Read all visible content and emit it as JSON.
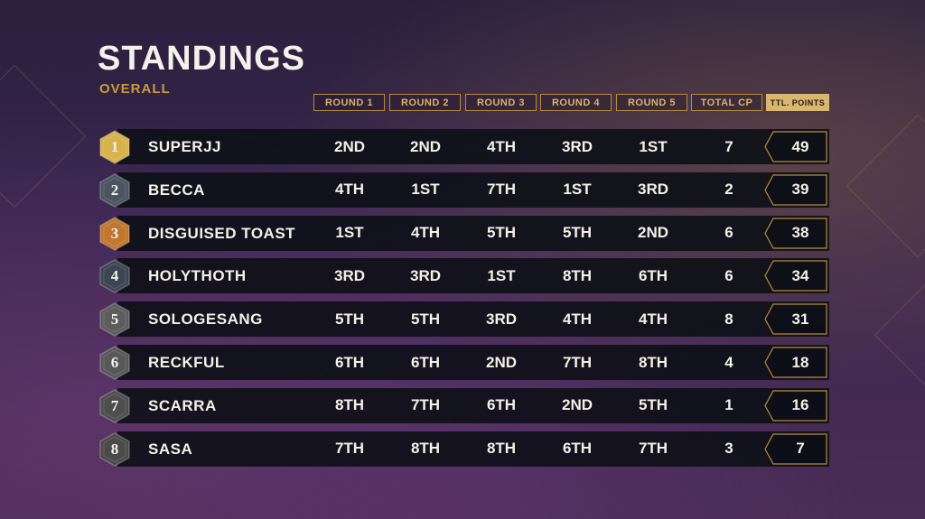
{
  "header": {
    "title": "STANDINGS",
    "subtitle": "OVERALL"
  },
  "columns": [
    "ROUND 1",
    "ROUND 2",
    "ROUND 3",
    "ROUND 4",
    "ROUND 5",
    "TOTAL CP",
    "TTL. POINTS"
  ],
  "badge_colors": {
    "1": "#d8b24a",
    "2": "#4a5560",
    "3": "#c07830",
    "4": "#3c4652",
    "5": "#5c5c5c",
    "6": "#585858",
    "7": "#4e4e4e",
    "8": "#4a4a4a"
  },
  "rows": [
    {
      "rank": "1",
      "player": "SUPERJJ",
      "rounds": [
        "2ND",
        "2ND",
        "4TH",
        "3RD",
        "1ST"
      ],
      "total_cp": "7",
      "points": "49"
    },
    {
      "rank": "2",
      "player": "BECCA",
      "rounds": [
        "4TH",
        "1ST",
        "7TH",
        "1ST",
        "3RD"
      ],
      "total_cp": "2",
      "points": "39"
    },
    {
      "rank": "3",
      "player": "DISGUISED TOAST",
      "rounds": [
        "1ST",
        "4TH",
        "5TH",
        "5TH",
        "2ND"
      ],
      "total_cp": "6",
      "points": "38"
    },
    {
      "rank": "4",
      "player": "HOLYTHOTH",
      "rounds": [
        "3RD",
        "3RD",
        "1ST",
        "8TH",
        "6TH"
      ],
      "total_cp": "6",
      "points": "34"
    },
    {
      "rank": "5",
      "player": "SOLOGESANG",
      "rounds": [
        "5TH",
        "5TH",
        "3RD",
        "4TH",
        "4TH"
      ],
      "total_cp": "8",
      "points": "31"
    },
    {
      "rank": "6",
      "player": "RECKFUL",
      "rounds": [
        "6TH",
        "6TH",
        "2ND",
        "7TH",
        "8TH"
      ],
      "total_cp": "4",
      "points": "18"
    },
    {
      "rank": "7",
      "player": "SCARRA",
      "rounds": [
        "8TH",
        "7TH",
        "6TH",
        "2ND",
        "5TH"
      ],
      "total_cp": "1",
      "points": "16"
    },
    {
      "rank": "8",
      "player": "SASA",
      "rounds": [
        "7TH",
        "8TH",
        "8TH",
        "6TH",
        "7TH"
      ],
      "total_cp": "3",
      "points": "7"
    }
  ]
}
